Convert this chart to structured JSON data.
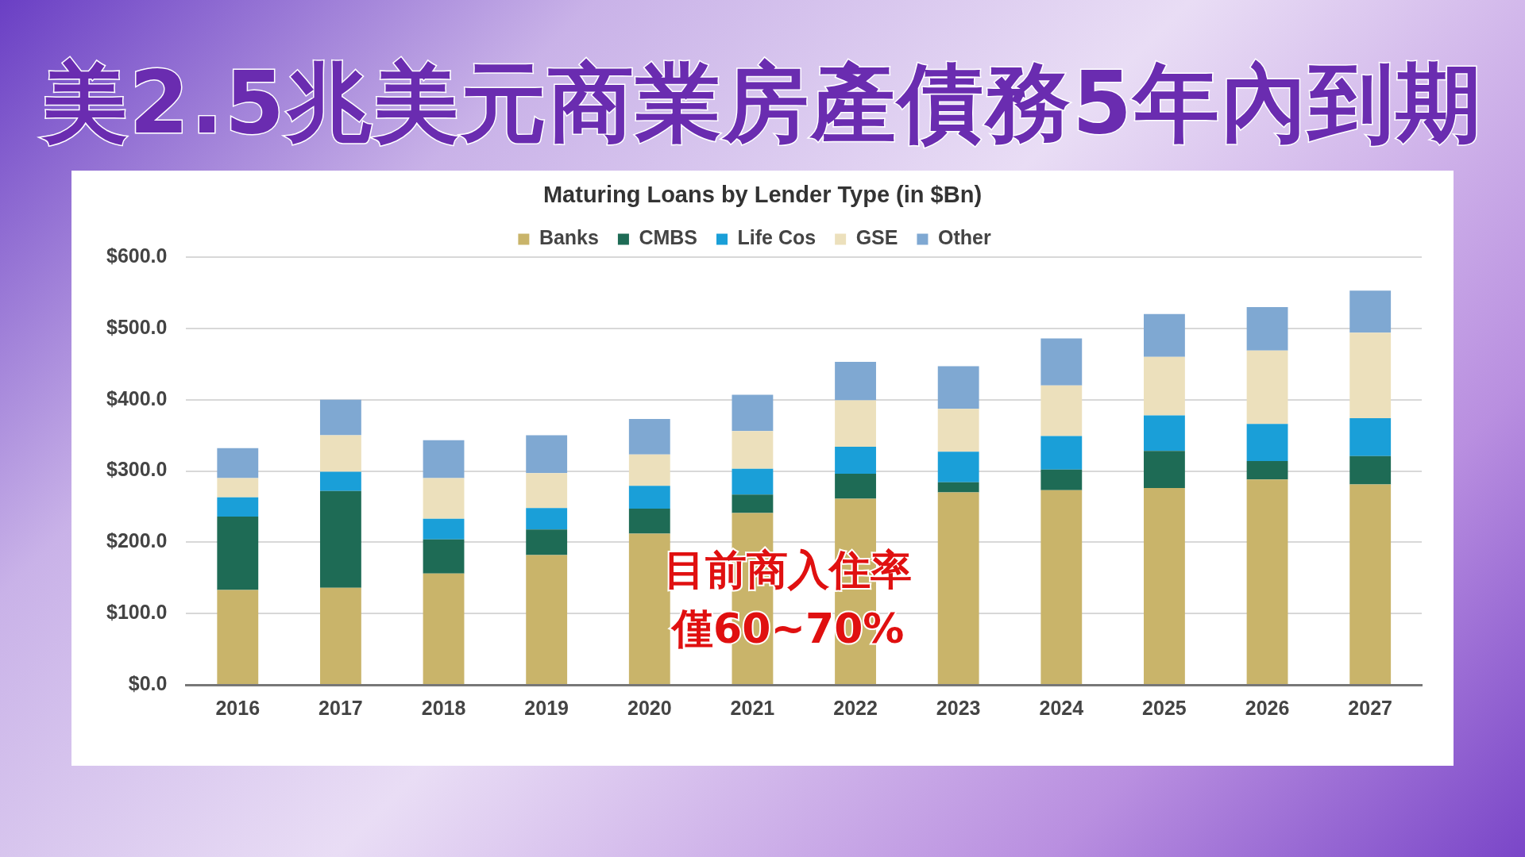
{
  "chart_data": {
    "type": "bar",
    "title": "美2.5兆美元商業房產債務5年內到期",
    "subtitle": "Maturing Loans by Lender Type (in $Bn)",
    "categories": [
      "2016",
      "2017",
      "2018",
      "2019",
      "2020",
      "2021",
      "2022",
      "2023",
      "2024",
      "2025",
      "2026",
      "2027"
    ],
    "stacked": true,
    "series": [
      {
        "name": "Banks",
        "color": "#c9b46a",
        "values": [
          133,
          136,
          156,
          182,
          212,
          241,
          261,
          270,
          273,
          276,
          288,
          281
        ]
      },
      {
        "name": "CMBS",
        "color": "#1e6b55",
        "values": [
          103,
          136,
          48,
          36,
          35,
          26,
          35,
          14,
          29,
          52,
          26,
          40
        ]
      },
      {
        "name": "Life Cos",
        "color": "#1a9fd8",
        "values": [
          27,
          27,
          29,
          30,
          32,
          36,
          38,
          43,
          47,
          50,
          52,
          53
        ]
      },
      {
        "name": "GSE",
        "color": "#ece0bc",
        "values": [
          27,
          51,
          57,
          49,
          44,
          53,
          65,
          60,
          71,
          82,
          103,
          120
        ]
      },
      {
        "name": "Other",
        "color": "#7fa8d2",
        "values": [
          42,
          50,
          53,
          53,
          50,
          51,
          54,
          60,
          66,
          60,
          61,
          59
        ]
      }
    ],
    "ylim": [
      0,
      600
    ],
    "yticks": [
      {
        "value": 0,
        "label": "$0.0"
      },
      {
        "value": 100,
        "label": "$100.0"
      },
      {
        "value": 200,
        "label": "$200.0"
      },
      {
        "value": 300,
        "label": "$300.0"
      },
      {
        "value": 400,
        "label": "$400.0"
      },
      {
        "value": 500,
        "label": "$500.0"
      },
      {
        "value": 600,
        "label": "$600.0"
      }
    ],
    "grid": "y",
    "legend": "top",
    "annotations": [
      "目前商入住率",
      "僅60~70%"
    ]
  }
}
